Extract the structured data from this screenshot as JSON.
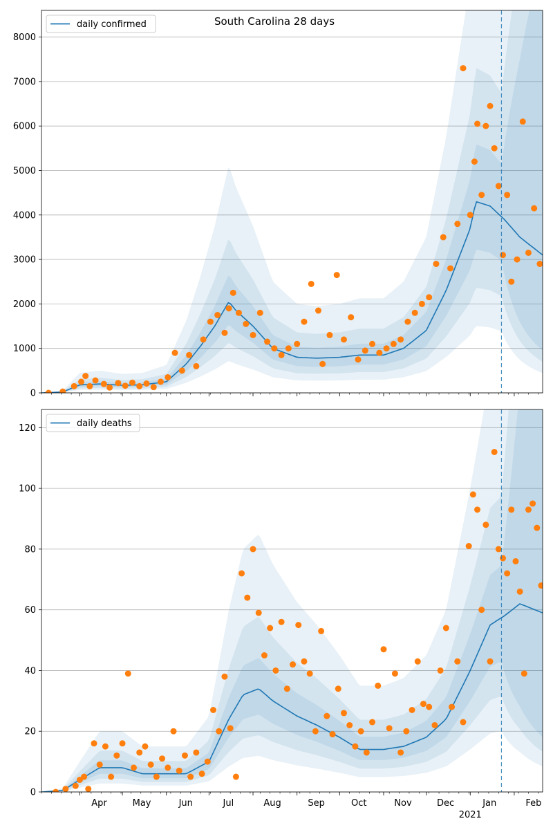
{
  "title": "South Carolina 28 days",
  "colors": {
    "line": "#1f77b4",
    "points": "#ff7f0e",
    "band": "#1f77b4",
    "grid": "#b0b0b0"
  },
  "x_axis": {
    "months": [
      "Apr",
      "May",
      "Jun",
      "Jul",
      "Aug",
      "Sep",
      "Oct",
      "Nov",
      "Dec",
      "Jan",
      "Feb"
    ],
    "year_label": "2021",
    "start_date": "2020-03-05",
    "end_date": "2021-02-21",
    "forecast_line_date": "2021-01-23"
  },
  "chart_data": [
    {
      "type": "line",
      "legend": "daily confirmed",
      "legend_position": "top-left",
      "grid": "y",
      "ylim": [
        0,
        8600
      ],
      "yticks": [
        "0",
        "1000",
        "2000",
        "3000",
        "4000",
        "5000",
        "6000",
        "7000",
        "8000"
      ],
      "observed_daily_note": "scatter points",
      "series": [
        {
          "name": "daily confirmed",
          "dates": [
            "2020-03-05",
            "2020-03-20",
            "2020-04-01",
            "2020-04-15",
            "2020-05-01",
            "2020-05-15",
            "2020-06-01",
            "2020-06-15",
            "2020-06-25",
            "2020-07-05",
            "2020-07-15",
            "2020-07-20",
            "2020-08-01",
            "2020-08-15",
            "2020-09-01",
            "2020-09-15",
            "2020-10-01",
            "2020-10-15",
            "2020-11-01",
            "2020-11-15",
            "2020-12-01",
            "2020-12-15",
            "2021-01-01",
            "2021-01-05",
            "2021-01-15",
            "2021-01-25",
            "2021-02-05",
            "2021-02-21"
          ],
          "values": [
            0,
            20,
            180,
            200,
            170,
            180,
            250,
            650,
            1050,
            1500,
            2050,
            1850,
            1500,
            1000,
            800,
            780,
            800,
            850,
            850,
            1000,
            1400,
            2300,
            3700,
            4300,
            4200,
            3900,
            3500,
            3100
          ]
        }
      ],
      "points": {
        "dates": [
          "2020-03-10",
          "2020-03-20",
          "2020-03-28",
          "2020-04-02",
          "2020-04-05",
          "2020-04-08",
          "2020-04-12",
          "2020-04-18",
          "2020-04-22",
          "2020-04-28",
          "2020-05-03",
          "2020-05-08",
          "2020-05-13",
          "2020-05-18",
          "2020-05-23",
          "2020-05-28",
          "2020-06-02",
          "2020-06-07",
          "2020-06-12",
          "2020-06-17",
          "2020-06-22",
          "2020-06-27",
          "2020-07-02",
          "2020-07-07",
          "2020-07-12",
          "2020-07-15",
          "2020-07-18",
          "2020-07-22",
          "2020-07-27",
          "2020-08-01",
          "2020-08-06",
          "2020-08-11",
          "2020-08-16",
          "2020-08-21",
          "2020-08-26",
          "2020-09-01",
          "2020-09-06",
          "2020-09-11",
          "2020-09-16",
          "2020-09-19",
          "2020-09-24",
          "2020-09-29",
          "2020-10-04",
          "2020-10-09",
          "2020-10-14",
          "2020-10-19",
          "2020-10-24",
          "2020-10-29",
          "2020-11-03",
          "2020-11-08",
          "2020-11-13",
          "2020-11-18",
          "2020-11-23",
          "2020-11-28",
          "2020-12-03",
          "2020-12-08",
          "2020-12-13",
          "2020-12-18",
          "2020-12-23",
          "2020-12-27",
          "2021-01-01",
          "2021-01-04",
          "2021-01-06",
          "2021-01-09",
          "2021-01-12",
          "2021-01-15",
          "2021-01-18",
          "2021-01-21",
          "2021-01-24",
          "2021-01-27",
          "2021-01-30",
          "2021-02-03",
          "2021-02-07",
          "2021-02-11",
          "2021-02-15",
          "2021-02-19"
        ],
        "values": [
          0,
          30,
          150,
          250,
          380,
          150,
          280,
          200,
          120,
          220,
          160,
          230,
          150,
          210,
          130,
          250,
          350,
          900,
          500,
          850,
          600,
          1200,
          1600,
          1750,
          1350,
          1900,
          2250,
          1800,
          1550,
          1300,
          1800,
          1150,
          1000,
          850,
          1000,
          1100,
          1600,
          2450,
          1850,
          650,
          1300,
          2650,
          1200,
          1700,
          750,
          950,
          1100,
          900,
          1000,
          1100,
          1200,
          1600,
          1800,
          2000,
          2150,
          2900,
          3500,
          2800,
          3800,
          7300,
          4000,
          5200,
          6050,
          4450,
          6000,
          6450,
          5500,
          4650,
          3100,
          4450,
          2500,
          3000,
          6100,
          3150,
          4150,
          2900
        ]
      }
    },
    {
      "type": "line",
      "legend": "daily deaths",
      "legend_position": "top-left",
      "grid": "y",
      "ylim": [
        0,
        126
      ],
      "yticks": [
        "0",
        "20",
        "40",
        "60",
        "80",
        "100",
        "120"
      ],
      "series": [
        {
          "name": "daily deaths",
          "dates": [
            "2020-03-05",
            "2020-03-20",
            "2020-04-01",
            "2020-04-15",
            "2020-05-01",
            "2020-05-15",
            "2020-06-01",
            "2020-06-15",
            "2020-07-01",
            "2020-07-15",
            "2020-07-25",
            "2020-08-05",
            "2020-08-15",
            "2020-09-01",
            "2020-09-15",
            "2020-10-01",
            "2020-10-15",
            "2020-11-01",
            "2020-11-15",
            "2020-12-01",
            "2020-12-15",
            "2021-01-01",
            "2021-01-15",
            "2021-01-25",
            "2021-02-05",
            "2021-02-21"
          ],
          "values": [
            0,
            0.5,
            4,
            8,
            8,
            6,
            6,
            6,
            10,
            24,
            32,
            34,
            30,
            25,
            22,
            18,
            14,
            14,
            15,
            18,
            24,
            40,
            55,
            58,
            62,
            59
          ]
        }
      ],
      "points": {
        "dates": [
          "2020-03-15",
          "2020-03-22",
          "2020-03-29",
          "2020-04-01",
          "2020-04-04",
          "2020-04-07",
          "2020-04-11",
          "2020-04-15",
          "2020-04-19",
          "2020-04-23",
          "2020-04-27",
          "2020-05-01",
          "2020-05-05",
          "2020-05-09",
          "2020-05-13",
          "2020-05-17",
          "2020-05-21",
          "2020-05-25",
          "2020-05-29",
          "2020-06-02",
          "2020-06-06",
          "2020-06-10",
          "2020-06-14",
          "2020-06-18",
          "2020-06-22",
          "2020-06-26",
          "2020-06-30",
          "2020-07-04",
          "2020-07-08",
          "2020-07-12",
          "2020-07-16",
          "2020-07-20",
          "2020-07-24",
          "2020-07-28",
          "2020-08-01",
          "2020-08-05",
          "2020-08-09",
          "2020-08-13",
          "2020-08-17",
          "2020-08-21",
          "2020-08-25",
          "2020-08-29",
          "2020-09-02",
          "2020-09-06",
          "2020-09-10",
          "2020-09-14",
          "2020-09-18",
          "2020-09-22",
          "2020-09-26",
          "2020-09-30",
          "2020-10-04",
          "2020-10-08",
          "2020-10-12",
          "2020-10-16",
          "2020-10-20",
          "2020-10-24",
          "2020-10-28",
          "2020-11-01",
          "2020-11-05",
          "2020-11-09",
          "2020-11-13",
          "2020-11-17",
          "2020-11-21",
          "2020-11-25",
          "2020-11-29",
          "2020-12-03",
          "2020-12-07",
          "2020-12-11",
          "2020-12-15",
          "2020-12-19",
          "2020-12-23",
          "2020-12-27",
          "2020-12-31",
          "2021-01-03",
          "2021-01-06",
          "2021-01-09",
          "2021-01-12",
          "2021-01-15",
          "2021-01-18",
          "2021-01-21",
          "2021-01-24",
          "2021-01-27",
          "2021-01-30",
          "2021-02-02",
          "2021-02-05",
          "2021-02-08",
          "2021-02-11",
          "2021-02-14",
          "2021-02-17",
          "2021-02-20"
        ],
        "values": [
          0,
          1,
          2,
          4,
          5,
          1,
          16,
          9,
          15,
          5,
          12,
          16,
          39,
          8,
          13,
          15,
          9,
          5,
          11,
          8,
          20,
          7,
          12,
          5,
          13,
          6,
          10,
          27,
          20,
          38,
          21,
          5,
          72,
          64,
          80,
          59,
          45,
          54,
          40,
          56,
          34,
          42,
          55,
          43,
          39,
          20,
          53,
          25,
          19,
          34,
          26,
          22,
          15,
          20,
          13,
          23,
          35,
          47,
          21,
          39,
          13,
          20,
          27,
          43,
          29,
          28,
          22,
          40,
          54,
          28,
          43,
          23,
          81,
          98,
          93,
          60,
          88,
          43,
          112,
          80,
          77,
          72,
          93,
          76,
          66,
          39,
          93,
          95,
          87,
          68
        ]
      }
    }
  ]
}
